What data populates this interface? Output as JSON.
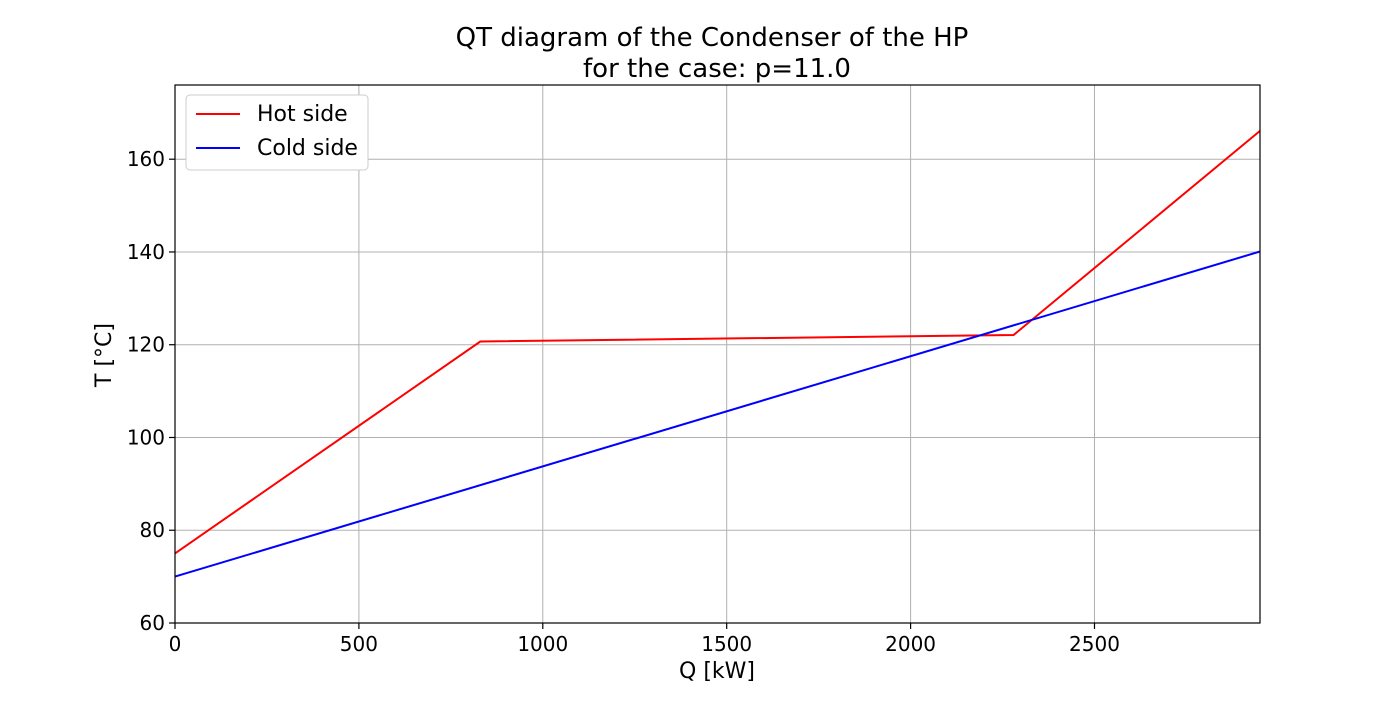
{
  "chart_data": {
    "type": "line",
    "title": "QT diagram of the Condenser of the HP",
    "subtitle": "for the case: p=11.0",
    "xlabel": "Q [kW]",
    "ylabel": "T [°C]",
    "xlim": [
      0,
      2950
    ],
    "ylim": [
      60,
      176
    ],
    "xticks": [
      0,
      500,
      1000,
      1500,
      2000,
      2500
    ],
    "yticks": [
      60,
      80,
      100,
      120,
      140,
      160
    ],
    "xtick_labels": [
      "0",
      "500",
      "1000",
      "1500",
      "2000",
      "2500"
    ],
    "ytick_labels": [
      "60",
      "80",
      "100",
      "120",
      "140",
      "160"
    ],
    "grid": true,
    "legend_position": "top-left",
    "series": [
      {
        "name": "Hot side",
        "color": "#ff0000",
        "x": [
          0,
          830,
          2280,
          2950
        ],
        "y": [
          75.0,
          120.7,
          122.1,
          166.1
        ]
      },
      {
        "name": "Cold side",
        "color": "#0000ff",
        "x": [
          0,
          2950
        ],
        "y": [
          70.0,
          140.1
        ]
      }
    ]
  }
}
